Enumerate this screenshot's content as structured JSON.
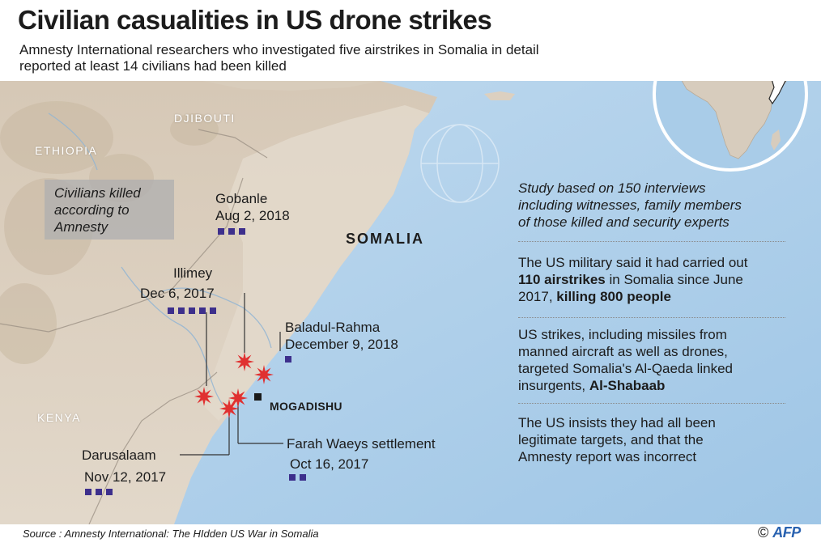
{
  "header": {
    "title": "Civilian casualities in US drone strikes",
    "subtitle_line1": "Amnesty International researchers who investigated five airstrikes in Somalia in detail",
    "subtitle_line2": "reported at least 14 civilians had been killed"
  },
  "countries": {
    "djibouti": "DJIBOUTI",
    "ethiopia": "ETHIOPIA",
    "kenya": "KENYA",
    "somalia": "SOMALIA"
  },
  "legend": {
    "line1": "Civilians killed",
    "line2": "according to",
    "line3": "Amnesty"
  },
  "strikes": [
    {
      "name": "Gobanle",
      "date": "Aug 2, 2018",
      "killed": 3
    },
    {
      "name": "Illimey",
      "date": "Dec 6, 2017",
      "killed": 5
    },
    {
      "name": "Baladul-Rahma",
      "date": "December 9, 2018",
      "killed": 1
    },
    {
      "name": "Farah Waeys settlement",
      "date": "Oct 16, 2017",
      "killed": 2
    },
    {
      "name": "Darusalaam",
      "date": "Nov 12, 2017",
      "killed": 3
    }
  ],
  "capital": "MOGADISHU",
  "panel": {
    "block1": [
      "Study based on 150 interviews",
      "including witnesses, family members",
      "of those killed and security experts"
    ],
    "block2": {
      "line1": "The US military said it had carried out",
      "line2_bold": "110 airstrikes",
      "line2_rest": " in Somalia since June",
      "line3_pre": "2017, ",
      "line3_bold": "killing 800 people"
    },
    "block3": {
      "line1": "US strikes, including missiles from",
      "line2": "manned aircraft as well as drones,",
      "line3": "targeted Somalia's Al-Qaeda linked",
      "line4_pre": "insurgents, ",
      "line4_bold": "Al-Shabaab"
    },
    "block4": [
      "The US insists they had all been",
      "legitimate targets, and that the",
      "Amnesty report was incorrect"
    ]
  },
  "footer": {
    "source": "Source : Amnesty International: The HIdden US War in Somalia",
    "copyright": "©",
    "agency": "AFP"
  },
  "colors": {
    "sea": "#a9cce8",
    "land": "#d9cdbd",
    "strike_marker": "#e03030",
    "victim_square": "#3d2f8c",
    "afp_logo": "#2962b0"
  }
}
